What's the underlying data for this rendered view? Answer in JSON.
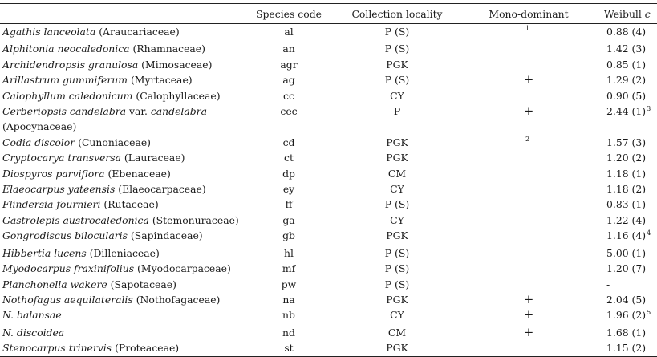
{
  "headers": {
    "species": "",
    "code": "Species code",
    "locality": "Collection locality",
    "mono": "Mono-dominant",
    "weibull_prefix": "Weibull ",
    "weibull_var": "c"
  },
  "rows": [
    {
      "name": "Agathis lanceolata",
      "family": " (Araucariaceae)",
      "code": "al",
      "locality": "P (S)",
      "mono": "",
      "mono_note": "1",
      "weibull": "0.88 (4)",
      "w_note": ""
    },
    {
      "name": "Alphitonia neocaledonica",
      "family": " (Rhamnaceae)",
      "code": "an",
      "locality": "P (S)",
      "mono": "",
      "mono_note": "",
      "weibull": "1.42 (3)",
      "w_note": ""
    },
    {
      "name": "Archidendropsis granulosa",
      "family": " (Mimosaceae)",
      "code": "agr",
      "locality": "PGK",
      "mono": "",
      "mono_note": "",
      "weibull": "0.85 (1)",
      "w_note": ""
    },
    {
      "name": "Arillastrum gummiferum",
      "family": " (Myrtaceae)",
      "code": "ag",
      "locality": "P (S)",
      "mono": "+",
      "mono_note": "",
      "weibull": "1.29 (2)",
      "w_note": ""
    },
    {
      "name": "Calophyllum caledonicum",
      "family": " (Calophyllaceae)",
      "code": "cc",
      "locality": "CY",
      "mono": "",
      "mono_note": "",
      "weibull": "0.90 (5)",
      "w_note": ""
    },
    {
      "name": "Cerberiopsis candelabra",
      "family": " var. ",
      "name2": "candelabra",
      "family2": "(Apocynaceae)",
      "code": "cec",
      "locality": "P",
      "mono": "+",
      "mono_note": "",
      "weibull": "2.44 (1)",
      "w_note": "3"
    },
    {
      "name": "Codia discolor",
      "family": " (Cunoniaceae)",
      "code": "cd",
      "locality": "PGK",
      "mono": "",
      "mono_note": "2",
      "weibull": "1.57 (3)",
      "w_note": ""
    },
    {
      "name": "Cryptocarya transversa",
      "family": " (Lauraceae)",
      "code": "ct",
      "locality": "PGK",
      "mono": "",
      "mono_note": "",
      "weibull": "1.20 (2)",
      "w_note": ""
    },
    {
      "name": "Diospyros parviflora",
      "family": " (Ebenaceae)",
      "code": "dp",
      "locality": "CM",
      "mono": "",
      "mono_note": "",
      "weibull": "1.18 (1)",
      "w_note": ""
    },
    {
      "name": "Elaeocarpus yateensis",
      "family": " (Elaeocarpaceae)",
      "code": "ey",
      "locality": "CY",
      "mono": "",
      "mono_note": "",
      "weibull": "1.18 (2)",
      "w_note": ""
    },
    {
      "name": "Flindersia fournieri",
      "family": " (Rutaceae)",
      "code": "ff",
      "locality": "P (S)",
      "mono": "",
      "mono_note": "",
      "weibull": "0.83 (1)",
      "w_note": ""
    },
    {
      "name": "Gastrolepis austrocaledonica",
      "family": " (Stemonuraceae)",
      "code": "ga",
      "locality": "CY",
      "mono": "",
      "mono_note": "",
      "weibull": "1.22 (4)",
      "w_note": ""
    },
    {
      "name": "Gongrodiscus bilocularis",
      "family": " (Sapindaceae)",
      "code": "gb",
      "locality": "PGK",
      "mono": "",
      "mono_note": "",
      "weibull": "1.16 (4)",
      "w_note": "4"
    },
    {
      "name": "Hibbertia lucens",
      "family": " (Dilleniaceae)",
      "code": "hl",
      "locality": "P (S)",
      "mono": "",
      "mono_note": "",
      "weibull": "5.00 (1)",
      "w_note": ""
    },
    {
      "name": "Myodocarpus fraxinifolius",
      "family": " (Myodocarpaceae)",
      "code": "mf",
      "locality": "P (S)",
      "mono": "",
      "mono_note": "",
      "weibull": "1.20 (7)",
      "w_note": ""
    },
    {
      "name": "Planchonella wakere",
      "family": " (Sapotaceae)",
      "code": "pw",
      "locality": "P (S)",
      "mono": "",
      "mono_note": "",
      "weibull": "-",
      "w_note": ""
    },
    {
      "name": "Nothofagus aequilateralis",
      "family": " (Nothofagaceae)",
      "code": "na",
      "locality": "PGK",
      "mono": "+",
      "mono_note": "",
      "weibull": "2.04 (5)",
      "w_note": ""
    },
    {
      "name": "N. balansae",
      "family": "",
      "code": "nb",
      "locality": "CY",
      "mono": "+",
      "mono_note": "",
      "weibull": "1.96 (2)",
      "w_note": "5"
    },
    {
      "name": "N. discoidea",
      "family": "",
      "code": "nd",
      "locality": "CM",
      "mono": "+",
      "mono_note": "",
      "weibull": "1.68 (1)",
      "w_note": ""
    },
    {
      "name": "Stenocarpus trinervis",
      "family": " (Proteaceae)",
      "code": "st",
      "locality": "PGK",
      "mono": "",
      "mono_note": "",
      "weibull": "1.15 (2)",
      "w_note": ""
    }
  ]
}
